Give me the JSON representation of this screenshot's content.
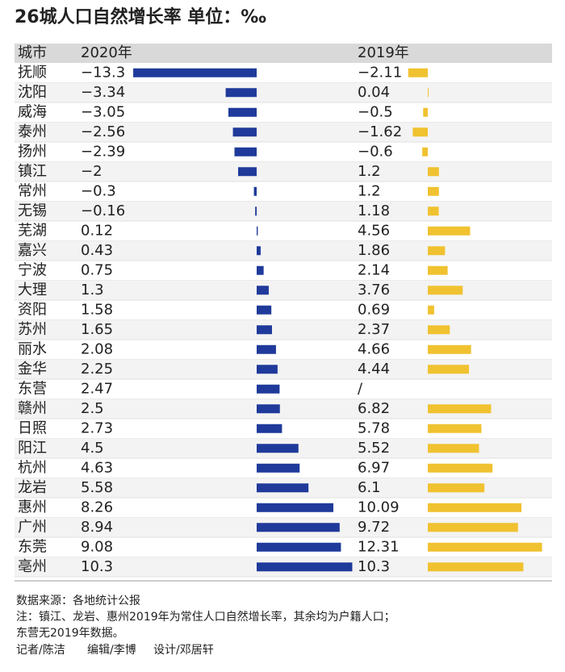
{
  "chart_data": {
    "type": "bar",
    "orientation": "horizontal",
    "title": "26城人口自然增长率 单位：‰",
    "category_header": "城市",
    "categories": [
      "抚顺",
      "沈阳",
      "威海",
      "泰州",
      "扬州",
      "镇江",
      "常州",
      "无锡",
      "芜湖",
      "嘉兴",
      "宁波",
      "大理",
      "资阳",
      "苏州",
      "丽水",
      "金华",
      "东营",
      "赣州",
      "日照",
      "阳江",
      "杭州",
      "龙岩",
      "惠州",
      "广州",
      "东莞",
      "亳州"
    ],
    "series": [
      {
        "name": "2020年",
        "color": "#1f3a9a",
        "values": [
          -13.3,
          -3.34,
          -3.05,
          -2.56,
          -2.39,
          -2,
          -0.3,
          -0.16,
          0.12,
          0.43,
          0.75,
          1.3,
          1.58,
          1.65,
          2.08,
          2.25,
          2.47,
          2.5,
          2.73,
          4.5,
          4.63,
          5.58,
          8.26,
          8.94,
          9.08,
          10.3
        ],
        "value_labels": [
          "−13.3",
          "−3.34",
          "−3.05",
          "−2.56",
          "−2.39",
          "−2",
          "−0.3",
          "−0.16",
          "0.12",
          "0.43",
          "0.75",
          "1.3",
          "1.58",
          "1.65",
          "2.08",
          "2.25",
          "2.47",
          "2.5",
          "2.73",
          "4.5",
          "4.63",
          "5.58",
          "8.26",
          "8.94",
          "9.08",
          "10.3"
        ]
      },
      {
        "name": "2019年",
        "color": "#f0c230",
        "values": [
          -2.11,
          0.04,
          -0.5,
          -1.62,
          -0.6,
          1.2,
          1.2,
          1.18,
          4.56,
          1.86,
          2.14,
          3.76,
          0.69,
          2.37,
          4.66,
          4.44,
          null,
          6.82,
          5.78,
          5.52,
          6.97,
          6.1,
          10.09,
          9.72,
          12.31,
          10.3
        ],
        "value_labels": [
          "−2.11",
          "0.04",
          "−0.5",
          "−1.62",
          "−0.6",
          "1.2",
          "1.2",
          "1.18",
          "4.56",
          "1.86",
          "2.14",
          "3.76",
          "0.69",
          "2.37",
          "4.66",
          "4.44",
          "/",
          "6.82",
          "5.78",
          "5.52",
          "6.97",
          "6.1",
          "10.09",
          "9.72",
          "12.31",
          "10.3"
        ]
      }
    ],
    "notes": [
      "数据来源：各地统计公报",
      "注：镇江、龙岩、惠州2019年为常住人口自然增长率，其余均为户籍人口；",
      "东营无2019年数据。"
    ],
    "credits": [
      "记者/陈洁",
      "编辑/李博",
      "设计/邓居轩"
    ]
  }
}
